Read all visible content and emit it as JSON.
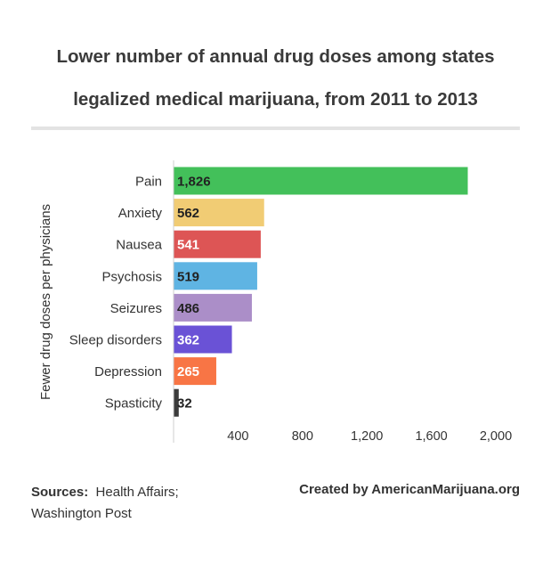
{
  "title_line1": "Lower number of annual drug doses among states",
  "title_line2": "legalized medical marijuana, from 2011 to 2013",
  "footer": {
    "sources_label": "Sources:",
    "sources_line1": "Health Affairs;",
    "sources_line2": "Washington Post",
    "credit": "Created by AmericanMarijuana.org"
  },
  "chart_data": {
    "type": "bar",
    "orientation": "horizontal",
    "title": "Lower number of annual drug doses among states legalized medical marijuana, from 2011 to 2013",
    "ylabel": "Fewer drug doses per physicians",
    "xlabel": "",
    "xlim": [
      0,
      2000
    ],
    "x_ticks": [
      400,
      800,
      1200,
      1600,
      2000
    ],
    "x_tick_labels": [
      "400",
      "800",
      "1,200",
      "1,600",
      "2,000"
    ],
    "grid": false,
    "categories": [
      "Pain",
      "Anxiety",
      "Nausea",
      "Psychosis",
      "Seizures",
      "Sleep disorders",
      "Depression",
      "Spasticity"
    ],
    "values": [
      1826,
      562,
      541,
      519,
      486,
      362,
      265,
      32
    ],
    "value_labels": [
      "1,826",
      "562",
      "541",
      "519",
      "486",
      "362",
      "265",
      "32"
    ],
    "colors": [
      "#43c05a",
      "#f1cc74",
      "#dd5555",
      "#5fb4e3",
      "#ab8ec8",
      "#6a52d6",
      "#f87545",
      "#3b3b3b"
    ],
    "label_colors": [
      "#222222",
      "#222222",
      "#ffffff",
      "#222222",
      "#222222",
      "#ffffff",
      "#ffffff",
      "#222222"
    ]
  }
}
